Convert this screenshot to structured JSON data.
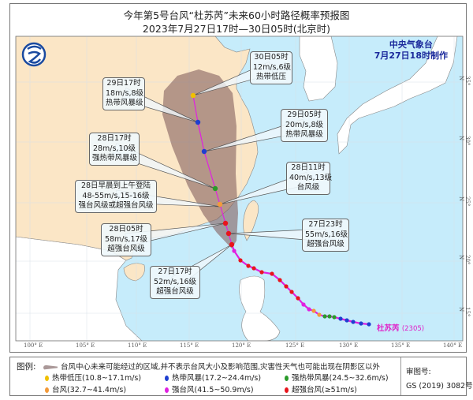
{
  "header": {
    "title": "今年第5号台风“杜苏芮”未来60小时路径概率预报图",
    "subtitle": "2023年7月27日17时—30日05时(北京时)"
  },
  "agency": {
    "name": "中央气象台",
    "issued": "7月27日18时制作"
  },
  "typhoon": {
    "name": "杜苏芮",
    "code": "(2305)"
  },
  "axes": {
    "longitude": [
      "100° E",
      "105° E",
      "110° E",
      "115° E",
      "120° E",
      "125° E",
      "130° E",
      "135° E",
      "140° E"
    ],
    "latitude": [
      "35° N",
      "30° N",
      "25° N",
      "20° N",
      "15° N"
    ]
  },
  "forecast_points": [
    {
      "time": "27日17时",
      "wind": "52m/s,16级",
      "level": "超强台风级",
      "color": "#e8141c"
    },
    {
      "time": "27日23时",
      "wind": "55m/s,16级",
      "level": "超强台风级",
      "color": "#e8141c"
    },
    {
      "time": "28日05时",
      "wind": "58m/s,17级",
      "level": "超强台风级",
      "color": "#e8141c"
    },
    {
      "time": "28日早晨到上午登陆",
      "wind": "48-55m/s,15-16级",
      "level": "强台风级或超强台风级",
      "color": "#f39a3a"
    },
    {
      "time": "28日11时",
      "wind": "40m/s,13级",
      "level": "台风级",
      "color": "#f39a3a"
    },
    {
      "time": "28日17时",
      "wind": "28m/s,10级",
      "level": "强热带风暴级",
      "color": "#2a9a2a"
    },
    {
      "time": "29日05时",
      "wind": "20m/s,8级",
      "level": "热带风暴级",
      "color": "#1f3fd0"
    },
    {
      "time": "29日17时",
      "wind": "18m/s,8级",
      "level": "热带风暴级",
      "color": "#1f3fd0"
    },
    {
      "time": "30日05时",
      "wind": "12m/s,6级",
      "level": "热带低压",
      "color": "#f0c000"
    }
  ],
  "legend": {
    "title": "图例:",
    "cone_note": "台风中心未来可能经过的区域,并不表示台风大小及影响范围,灾害性天气也可能出现在阴影区以外",
    "items": [
      {
        "label": "热带低压(10.8~17.1m/s)",
        "color": "#f0c000"
      },
      {
        "label": "热带风暴(17.2~24.4m/s)",
        "color": "#1f3fd0"
      },
      {
        "label": "强热带风暴(24.5~32.6m/s)",
        "color": "#2a9a2a"
      },
      {
        "label": "台风(32.7~41.4m/s)",
        "color": "#f39a3a"
      },
      {
        "label": "强台风(41.5~50.9m/s)",
        "color": "#e020e0"
      },
      {
        "label": "超强台风(≥51m/s)",
        "color": "#e8141c"
      }
    ],
    "approval_label": "审图号:",
    "approval_number": "GS (2019) 3082号"
  },
  "colors": {
    "sea": "#c6ecfb",
    "china_land": "#fbe6c6",
    "other_land": "#ffffff",
    "cone": "#85605f",
    "track": "#e020e0"
  }
}
